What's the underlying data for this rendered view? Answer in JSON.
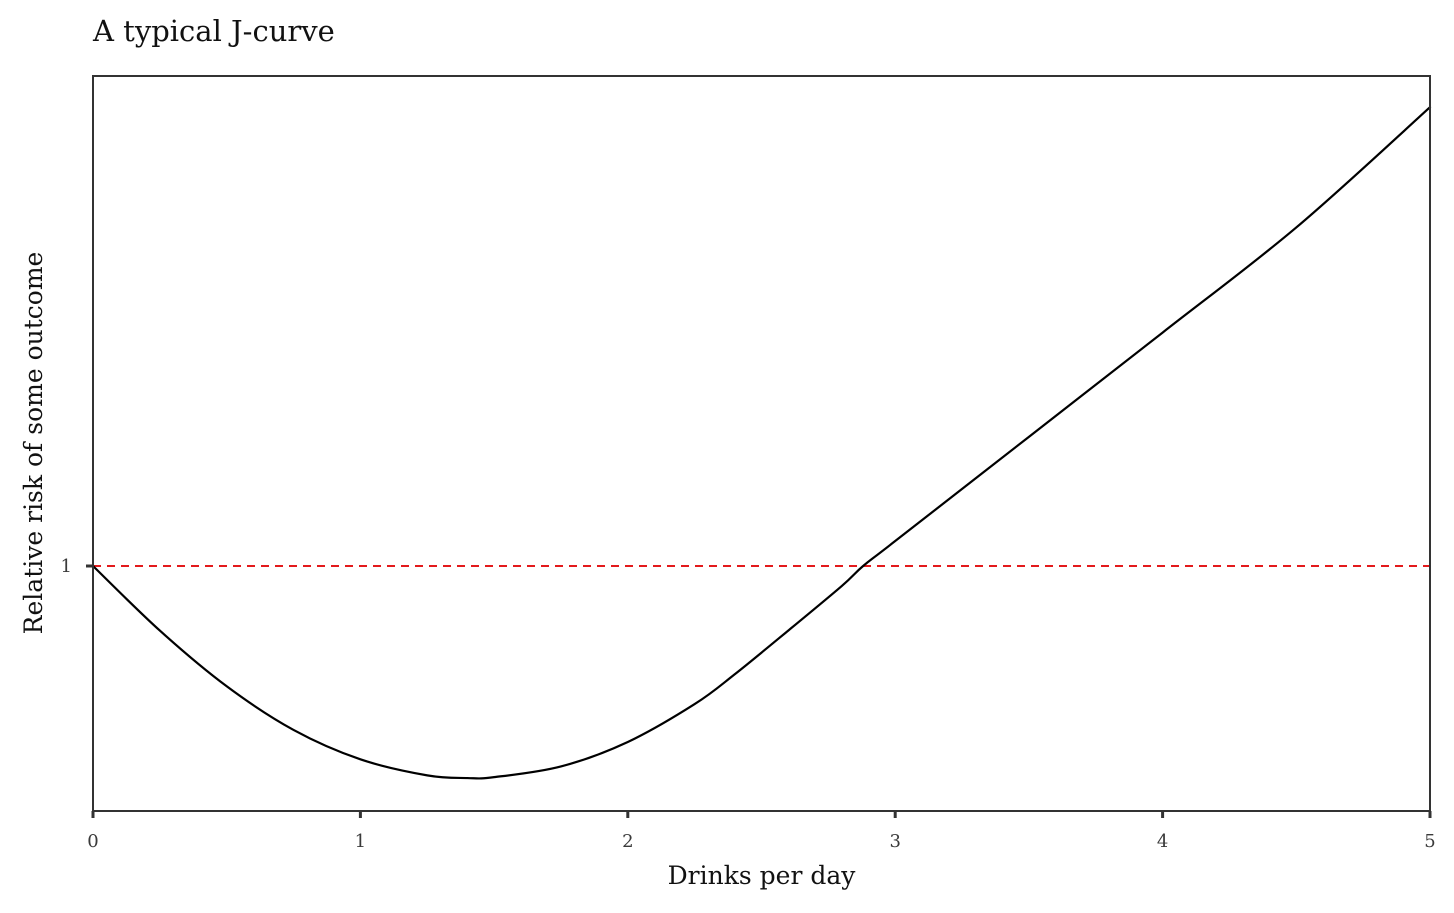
{
  "chart_data": {
    "type": "line",
    "title": "A typical J-curve",
    "xlabel": "Drinks per day",
    "ylabel": "Relative risk of some outcome",
    "xlim": [
      0,
      5
    ],
    "ylim": [
      0.45,
      2.1
    ],
    "x_ticks": [
      "0",
      "1",
      "2",
      "3",
      "4",
      "5"
    ],
    "y_ticks": [
      "1"
    ],
    "grid": false,
    "legend": "none",
    "reference_line": {
      "y": 1,
      "style": "dashed",
      "color": "#e31a1c"
    },
    "series": [
      {
        "color": "#000000",
        "x": [
          0,
          0.25,
          0.5,
          0.75,
          1.0,
          1.25,
          1.4,
          1.5,
          1.75,
          2.0,
          2.25,
          2.4,
          2.6,
          2.8,
          2.88,
          3.0,
          3.5,
          4.0,
          4.5,
          5.0
        ],
        "y": [
          1.0,
          0.855,
          0.73,
          0.632,
          0.566,
          0.53,
          0.524,
          0.526,
          0.55,
          0.605,
          0.69,
          0.757,
          0.855,
          0.955,
          1.0,
          1.056,
          1.29,
          1.524,
          1.76,
          2.03
        ]
      }
    ]
  }
}
